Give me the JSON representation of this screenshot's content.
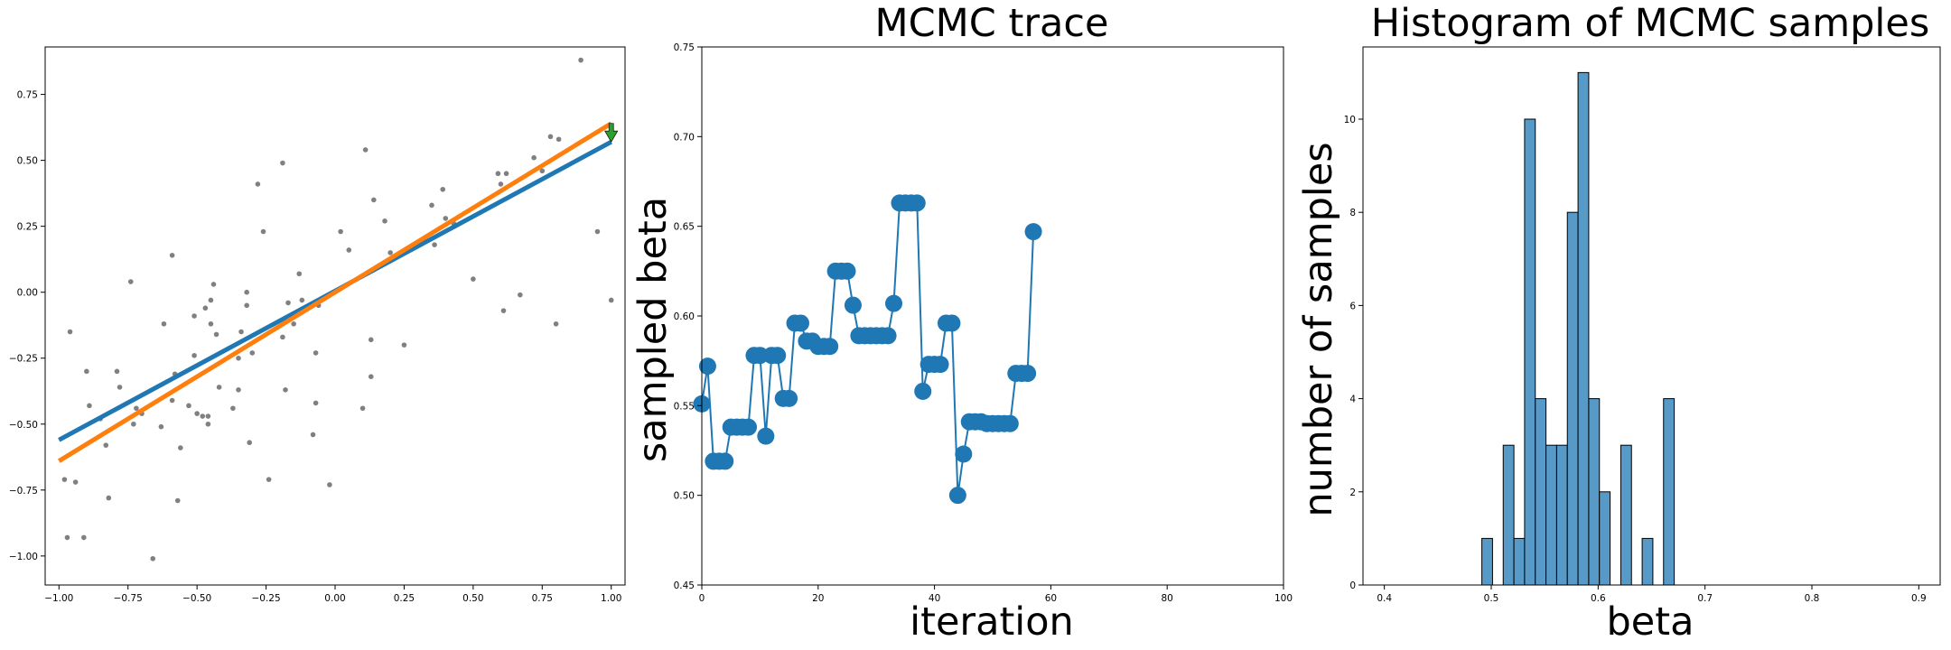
{
  "chart_data": [
    {
      "type": "scatter",
      "title": "",
      "xlabel": "",
      "ylabel": "",
      "xlim": [
        -1.05,
        1.05
      ],
      "ylim": [
        -1.11,
        0.93
      ],
      "xticks": [
        -1.0,
        -0.75,
        -0.5,
        -0.25,
        0.0,
        0.25,
        0.5,
        0.75,
        1.0
      ],
      "xtick_labels": [
        "−1.00",
        "−0.75",
        "−0.50",
        "−0.25",
        "0.00",
        "0.25",
        "0.50",
        "0.75",
        "1.00"
      ],
      "yticks": [
        -1.0,
        -0.75,
        -0.5,
        -0.25,
        0.0,
        0.25,
        0.5,
        0.75
      ],
      "ytick_labels": [
        "−1.00",
        "−0.75",
        "−0.50",
        "−0.25",
        "0.00",
        "0.25",
        "0.50",
        "0.75"
      ],
      "points": [
        [
          -0.98,
          -0.71
        ],
        [
          -0.97,
          -0.93
        ],
        [
          -0.96,
          -0.15
        ],
        [
          -0.94,
          -0.72
        ],
        [
          -0.91,
          -0.93
        ],
        [
          -0.9,
          -0.3
        ],
        [
          -0.89,
          -0.43
        ],
        [
          -0.85,
          -0.48
        ],
        [
          -0.83,
          -0.58
        ],
        [
          -0.82,
          -0.78
        ],
        [
          -0.79,
          -0.3
        ],
        [
          -0.78,
          -0.36
        ],
        [
          -0.74,
          0.04
        ],
        [
          -0.73,
          -0.5
        ],
        [
          -0.72,
          -0.44
        ],
        [
          -0.7,
          -0.46
        ],
        [
          -0.66,
          -1.01
        ],
        [
          -0.63,
          -0.51
        ],
        [
          -0.62,
          -0.12
        ],
        [
          -0.59,
          -0.41
        ],
        [
          -0.59,
          0.14
        ],
        [
          -0.58,
          -0.31
        ],
        [
          -0.57,
          -0.79
        ],
        [
          -0.56,
          -0.59
        ],
        [
          -0.53,
          -0.43
        ],
        [
          -0.51,
          -0.24
        ],
        [
          -0.51,
          -0.09
        ],
        [
          -0.5,
          -0.46
        ],
        [
          -0.48,
          -0.47
        ],
        [
          -0.47,
          -0.06
        ],
        [
          -0.46,
          -0.47
        ],
        [
          -0.46,
          -0.5
        ],
        [
          -0.45,
          -0.12
        ],
        [
          -0.45,
          -0.03
        ],
        [
          -0.44,
          0.03
        ],
        [
          -0.43,
          -0.16
        ],
        [
          -0.42,
          -0.36
        ],
        [
          -0.37,
          -0.44
        ],
        [
          -0.35,
          -0.37
        ],
        [
          -0.35,
          -0.25
        ],
        [
          -0.34,
          -0.15
        ],
        [
          -0.32,
          -0.05
        ],
        [
          -0.32,
          0.0
        ],
        [
          -0.31,
          -0.57
        ],
        [
          -0.3,
          -0.23
        ],
        [
          -0.28,
          0.41
        ],
        [
          -0.26,
          0.23
        ],
        [
          -0.24,
          -0.71
        ],
        [
          -0.19,
          -0.17
        ],
        [
          -0.19,
          0.49
        ],
        [
          -0.18,
          -0.37
        ],
        [
          -0.17,
          -0.04
        ],
        [
          -0.15,
          -0.12
        ],
        [
          -0.13,
          0.07
        ],
        [
          -0.12,
          -0.03
        ],
        [
          -0.08,
          -0.54
        ],
        [
          -0.07,
          -0.42
        ],
        [
          -0.07,
          -0.23
        ],
        [
          -0.06,
          -0.05
        ],
        [
          -0.02,
          -0.73
        ],
        [
          0.02,
          0.23
        ],
        [
          0.05,
          0.16
        ],
        [
          0.1,
          -0.44
        ],
        [
          0.11,
          0.54
        ],
        [
          0.13,
          -0.18
        ],
        [
          0.13,
          -0.32
        ],
        [
          0.14,
          0.35
        ],
        [
          0.18,
          0.27
        ],
        [
          0.2,
          0.15
        ],
        [
          0.25,
          -0.2
        ],
        [
          0.35,
          0.33
        ],
        [
          0.36,
          0.18
        ],
        [
          0.39,
          0.39
        ],
        [
          0.4,
          0.28
        ],
        [
          0.43,
          0.26
        ],
        [
          0.5,
          0.05
        ],
        [
          0.59,
          0.45
        ],
        [
          0.6,
          0.41
        ],
        [
          0.61,
          -0.07
        ],
        [
          0.62,
          0.45
        ],
        [
          0.67,
          -0.01
        ],
        [
          0.72,
          0.51
        ],
        [
          0.75,
          0.46
        ],
        [
          0.78,
          0.59
        ],
        [
          0.8,
          -0.12
        ],
        [
          0.81,
          0.58
        ],
        [
          0.89,
          0.88
        ],
        [
          0.95,
          0.23
        ],
        [
          1.0,
          -0.03
        ]
      ],
      "lines": [
        {
          "color": "#1f77b4",
          "from": [
            -1.0,
            -0.56
          ],
          "to": [
            1.0,
            0.57
          ]
        },
        {
          "color": "#ff7f0e",
          "from": [
            -1.0,
            -0.64
          ],
          "to": [
            1.0,
            0.64
          ]
        }
      ],
      "arrow": {
        "color": "#2ca02c",
        "x": 1.0,
        "from_y": 0.64,
        "to_y": 0.57
      },
      "point_color": "#808080"
    },
    {
      "type": "line",
      "title": "MCMC trace",
      "xlabel": "iteration",
      "ylabel": "sampled beta",
      "xlim": [
        0,
        100
      ],
      "ylim": [
        0.45,
        0.75
      ],
      "xticks": [
        0,
        20,
        40,
        60,
        80,
        100
      ],
      "xtick_labels": [
        "0",
        "20",
        "40",
        "60",
        "80",
        "100"
      ],
      "yticks": [
        0.45,
        0.5,
        0.55,
        0.6,
        0.65,
        0.7,
        0.75
      ],
      "ytick_labels": [
        "0.45",
        "0.50",
        "0.55",
        "0.60",
        "0.65",
        "0.70",
        "0.75"
      ],
      "color": "#1f77b4",
      "x": [
        0,
        1,
        2,
        3,
        4,
        5,
        6,
        7,
        8,
        9,
        10,
        11,
        12,
        13,
        14,
        15,
        16,
        17,
        18,
        19,
        20,
        21,
        22,
        23,
        24,
        25,
        26,
        27,
        28,
        29,
        30,
        31,
        32,
        33,
        34,
        35,
        36,
        37,
        38,
        39,
        40,
        41,
        42,
        43,
        44,
        45,
        46,
        47,
        48,
        49,
        50,
        51,
        52,
        53,
        54,
        55,
        56,
        57
      ],
      "y": [
        0.551,
        0.572,
        0.519,
        0.519,
        0.519,
        0.538,
        0.538,
        0.538,
        0.538,
        0.578,
        0.578,
        0.533,
        0.578,
        0.578,
        0.554,
        0.554,
        0.596,
        0.596,
        0.586,
        0.586,
        0.583,
        0.583,
        0.583,
        0.625,
        0.625,
        0.625,
        0.606,
        0.589,
        0.589,
        0.589,
        0.589,
        0.589,
        0.589,
        0.607,
        0.663,
        0.663,
        0.663,
        0.663,
        0.558,
        0.573,
        0.573,
        0.573,
        0.596,
        0.596,
        0.5,
        0.523,
        0.541,
        0.541,
        0.541,
        0.54,
        0.54,
        0.54,
        0.54,
        0.54,
        0.568,
        0.568,
        0.568,
        0.647
      ]
    },
    {
      "type": "histogram",
      "title": "Histogram of MCMC samples",
      "xlabel": "beta",
      "ylabel": "number of samples",
      "xlim": [
        0.38,
        0.92
      ],
      "ylim": [
        0,
        11.55
      ],
      "xticks": [
        0.4,
        0.5,
        0.6,
        0.7,
        0.8,
        0.9
      ],
      "xtick_labels": [
        "0.4",
        "0.5",
        "0.6",
        "0.7",
        "0.8",
        "0.9"
      ],
      "yticks": [
        0,
        2,
        4,
        6,
        8,
        10
      ],
      "ytick_labels": [
        "0",
        "2",
        "4",
        "6",
        "8",
        "10"
      ],
      "color": "#5799c7",
      "edge_color": "#000000",
      "bins": [
        {
          "x0": 0.4912,
          "x1": 0.5012,
          "count": 1
        },
        {
          "x0": 0.5112,
          "x1": 0.5212,
          "count": 3
        },
        {
          "x0": 0.5212,
          "x1": 0.5312,
          "count": 1
        },
        {
          "x0": 0.5312,
          "x1": 0.5412,
          "count": 10
        },
        {
          "x0": 0.5412,
          "x1": 0.5512,
          "count": 4
        },
        {
          "x0": 0.5512,
          "x1": 0.5612,
          "count": 3
        },
        {
          "x0": 0.5612,
          "x1": 0.5712,
          "count": 3
        },
        {
          "x0": 0.5712,
          "x1": 0.5812,
          "count": 8
        },
        {
          "x0": 0.5812,
          "x1": 0.5912,
          "count": 11
        },
        {
          "x0": 0.5912,
          "x1": 0.6012,
          "count": 4
        },
        {
          "x0": 0.6012,
          "x1": 0.6112,
          "count": 2
        },
        {
          "x0": 0.6212,
          "x1": 0.6312,
          "count": 3
        },
        {
          "x0": 0.6412,
          "x1": 0.6512,
          "count": 1
        },
        {
          "x0": 0.6612,
          "x1": 0.6712,
          "count": 4
        }
      ]
    }
  ]
}
